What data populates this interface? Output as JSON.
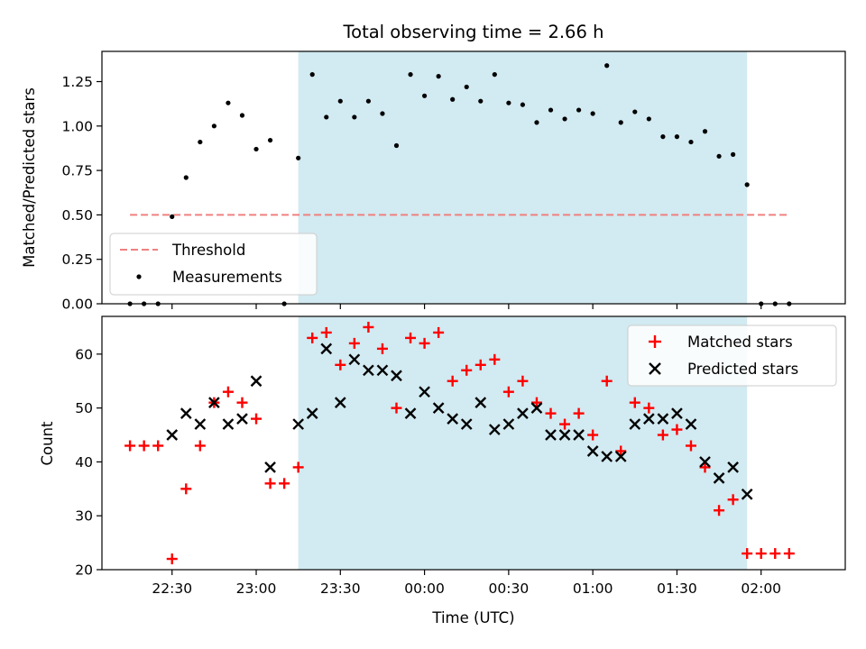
{
  "chart_data": [
    {
      "type": "scatter",
      "title": "Total observing time = 2.66 h",
      "xlabel": "",
      "ylabel": "Matched/Predicted stars",
      "xlim": [
        "22:05",
        "02:30"
      ],
      "ylim": [
        0,
        1.42
      ],
      "yticks": [
        0.0,
        0.25,
        0.5,
        0.75,
        1.0,
        1.25
      ],
      "ytick_labels": [
        "0.00",
        "0.25",
        "0.50",
        "0.75",
        "1.00",
        "1.25"
      ],
      "shaded_span": {
        "from": "23:15",
        "to": "01:55",
        "color": "#add8e6"
      },
      "threshold": {
        "name": "Threshold",
        "y": 0.5,
        "from": "22:15",
        "to": "02:10",
        "color": "#f08080",
        "style": "dashed"
      },
      "series": [
        {
          "name": "Measurements",
          "color": "#000000",
          "marker": "dot",
          "x": [
            "22:15",
            "22:20",
            "22:25",
            "22:30",
            "22:35",
            "22:40",
            "22:45",
            "22:50",
            "22:55",
            "23:00",
            "23:05",
            "23:10",
            "23:15",
            "23:20",
            "23:25",
            "23:30",
            "23:35",
            "23:40",
            "23:45",
            "23:50",
            "23:55",
            "00:00",
            "00:05",
            "00:10",
            "00:15",
            "00:20",
            "00:25",
            "00:30",
            "00:35",
            "00:40",
            "00:45",
            "00:50",
            "00:55",
            "01:00",
            "01:05",
            "01:10",
            "01:15",
            "01:20",
            "01:25",
            "01:30",
            "01:35",
            "01:40",
            "01:45",
            "01:50",
            "01:55",
            "02:00",
            "02:05",
            "02:10"
          ],
          "y": [
            0.0,
            0.0,
            0.0,
            0.49,
            0.71,
            0.91,
            1.0,
            1.13,
            1.06,
            0.87,
            0.92,
            0.0,
            0.82,
            1.29,
            1.05,
            1.14,
            1.05,
            1.14,
            1.07,
            0.89,
            1.29,
            1.17,
            1.28,
            1.15,
            1.22,
            1.14,
            1.29,
            1.13,
            1.12,
            1.02,
            1.09,
            1.04,
            1.09,
            1.07,
            1.34,
            1.02,
            1.08,
            1.04,
            0.94,
            0.94,
            0.91,
            0.97,
            0.83,
            0.84,
            0.67,
            0.0,
            0.0,
            0.0
          ]
        }
      ],
      "legend": {
        "placement": "lower-left",
        "entries": [
          "Threshold",
          "Measurements"
        ]
      },
      "grid": false
    },
    {
      "type": "scatter",
      "title": "",
      "xlabel": "Time (UTC)",
      "ylabel": "Count",
      "xlim": [
        "22:05",
        "02:30"
      ],
      "ylim": [
        20,
        67
      ],
      "yticks": [
        20,
        30,
        40,
        50,
        60
      ],
      "xtick_labels": [
        "22:30",
        "23:00",
        "23:30",
        "00:00",
        "00:30",
        "01:00",
        "01:30",
        "02:00"
      ],
      "shaded_span": {
        "from": "23:15",
        "to": "01:55",
        "color": "#add8e6"
      },
      "series": [
        {
          "name": "Matched stars",
          "color": "#ff0000",
          "marker": "plus",
          "x": [
            "22:15",
            "22:20",
            "22:25",
            "22:30",
            "22:35",
            "22:40",
            "22:45",
            "22:50",
            "22:55",
            "23:00",
            "23:05",
            "23:10",
            "23:15",
            "23:20",
            "23:25",
            "23:30",
            "23:35",
            "23:40",
            "23:45",
            "23:50",
            "23:55",
            "00:00",
            "00:05",
            "00:10",
            "00:15",
            "00:20",
            "00:25",
            "00:30",
            "00:35",
            "00:40",
            "00:45",
            "00:50",
            "00:55",
            "01:00",
            "01:05",
            "01:10",
            "01:15",
            "01:20",
            "01:25",
            "01:30",
            "01:35",
            "01:40",
            "01:45",
            "01:50",
            "01:55",
            "02:00",
            "02:05",
            "02:10"
          ],
          "y": [
            43,
            43,
            43,
            22,
            35,
            43,
            51,
            53,
            51,
            48,
            36,
            36,
            39,
            63,
            64,
            58,
            62,
            65,
            61,
            50,
            63,
            62,
            64,
            55,
            57,
            58,
            59,
            53,
            55,
            51,
            49,
            47,
            49,
            45,
            55,
            42,
            51,
            50,
            45,
            46,
            43,
            39,
            31,
            33,
            23,
            23,
            23,
            23
          ]
        },
        {
          "name": "Predicted stars",
          "color": "#000000",
          "marker": "x",
          "x": [
            "22:30",
            "22:35",
            "22:40",
            "22:45",
            "22:50",
            "22:55",
            "23:00",
            "23:05",
            "23:15",
            "23:20",
            "23:25",
            "23:30",
            "23:35",
            "23:40",
            "23:45",
            "23:50",
            "23:55",
            "00:00",
            "00:05",
            "00:10",
            "00:15",
            "00:20",
            "00:25",
            "00:30",
            "00:35",
            "00:40",
            "00:45",
            "00:50",
            "00:55",
            "01:00",
            "01:05",
            "01:10",
            "01:15",
            "01:20",
            "01:25",
            "01:30",
            "01:35",
            "01:40",
            "01:45",
            "01:50",
            "01:55"
          ],
          "y": [
            45,
            49,
            47,
            51,
            47,
            48,
            55,
            39,
            47,
            49,
            61,
            51,
            59,
            57,
            57,
            56,
            49,
            53,
            50,
            48,
            47,
            51,
            46,
            47,
            49,
            50,
            45,
            45,
            45,
            42,
            41,
            41,
            47,
            48,
            48,
            49,
            47,
            40,
            37,
            39,
            34
          ]
        }
      ],
      "legend": {
        "placement": "upper-right",
        "entries": [
          "Matched stars",
          "Predicted stars"
        ]
      },
      "grid": false
    }
  ]
}
